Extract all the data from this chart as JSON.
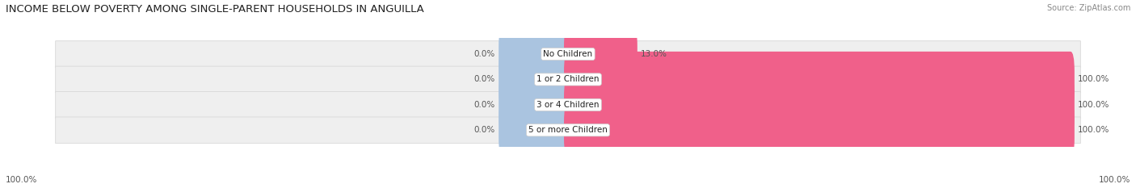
{
  "title": "INCOME BELOW POVERTY AMONG SINGLE-PARENT HOUSEHOLDS IN ANGUILLA",
  "source": "Source: ZipAtlas.com",
  "categories": [
    "No Children",
    "1 or 2 Children",
    "3 or 4 Children",
    "5 or more Children"
  ],
  "single_father": [
    0.0,
    0.0,
    0.0,
    0.0
  ],
  "single_mother": [
    13.0,
    100.0,
    100.0,
    100.0
  ],
  "father_color": "#aac4e0",
  "mother_color": "#f0608a",
  "row_bg_color": "#efefef",
  "row_border_color": "#d8d8d8",
  "title_fontsize": 9.5,
  "source_fontsize": 7,
  "label_fontsize": 7.5,
  "cat_fontsize": 7.5,
  "legend_fontsize": 8,
  "axis_label_left": "100.0%",
  "axis_label_right": "100.0%",
  "background_color": "#ffffff",
  "father_stub_pct": 13.0,
  "max_pct": 100.0
}
